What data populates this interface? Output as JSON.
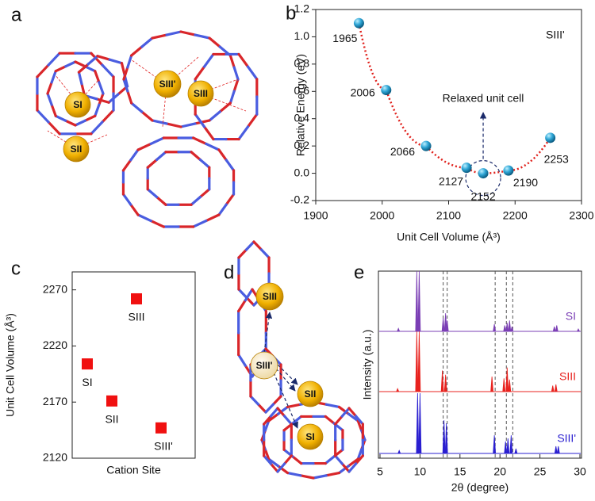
{
  "panel_labels": [
    "a",
    "b",
    "c",
    "d",
    "e"
  ],
  "diagram_a": {
    "sites": [
      "SI",
      "SII",
      "SIII'",
      "SIII"
    ]
  },
  "diagram_d": {
    "sites": [
      "SIII",
      "SIII'",
      "SII",
      "SI"
    ]
  },
  "chart_data": [
    {
      "type": "scatter",
      "x": [
        1965,
        2006,
        2066,
        2127,
        2152,
        2190,
        2253
      ],
      "values": [
        1.1,
        0.61,
        0.2,
        0.04,
        0,
        0.02,
        0.26
      ],
      "color": "#2fa6d6",
      "line_color": "#e0201b",
      "xlabel": "Unit Cell Volume (Å³)",
      "ylabel": "Relative Energy (eV)",
      "annotations": [
        "SIII'",
        "Relaxed unit cell"
      ],
      "xlim": [
        1900,
        2300
      ],
      "xticks": [
        1900,
        2000,
        2100,
        2200,
        2300
      ],
      "ylim": [
        -0.2,
        1.2
      ],
      "yticks": [
        -0.2,
        {
          "value": 0,
          "label": "0.0"
        },
        0.2,
        0.4,
        0.6,
        0.8,
        {
          "value": 1,
          "label": "1.0"
        },
        1.2
      ]
    },
    {
      "type": "scatter",
      "categories": [
        "SI",
        "SII",
        "SIII",
        "SIII'"
      ],
      "values": [
        2204,
        2171,
        2262,
        2147
      ],
      "color": "#f01010",
      "xlabel": "Cation Site",
      "ylabel": "Unit Cell Volume (Å³)",
      "ylim": [
        2120,
        2286
      ],
      "yticks": [
        2120,
        2170,
        2220,
        2270
      ]
    },
    {
      "type": "spectra",
      "xlabel": "2θ (degree)",
      "ylabel": "Intensity (a.u.)",
      "xlim": [
        5,
        30
      ],
      "xticks": [
        5,
        10,
        15,
        20,
        25,
        30
      ],
      "reference_lines": [
        12.9,
        13.4,
        19.4,
        20.8,
        21.6
      ],
      "series": [
        {
          "name": "SI",
          "color": "#7b3fb5",
          "x": [
            7.3,
            9.6,
            9.9,
            12.9,
            13.2,
            13.4,
            19.3,
            20.6,
            20.9,
            21.2,
            21.5,
            26.8,
            27.1,
            29.8
          ],
          "values": [
            5,
            100,
            100,
            22,
            30,
            18,
            12,
            10,
            14,
            18,
            8,
            8,
            10,
            4
          ]
        },
        {
          "name": "SIII",
          "color": "#e8231f",
          "x": [
            7.2,
            9.6,
            9.9,
            12.8,
            13.2,
            19.0,
            20.5,
            20.9,
            21.2,
            26.6,
            27.0
          ],
          "values": [
            5,
            100,
            100,
            35,
            28,
            25,
            22,
            40,
            20,
            10,
            12
          ]
        },
        {
          "name": "SIII'",
          "color": "#2a1fd0",
          "x": [
            7.4,
            9.7,
            10.0,
            13.0,
            13.3,
            19.3,
            20.7,
            21.0,
            21.4,
            22.0,
            27.0,
            27.3
          ],
          "values": [
            5,
            100,
            100,
            55,
            50,
            30,
            20,
            25,
            30,
            8,
            12,
            12
          ]
        }
      ]
    }
  ]
}
